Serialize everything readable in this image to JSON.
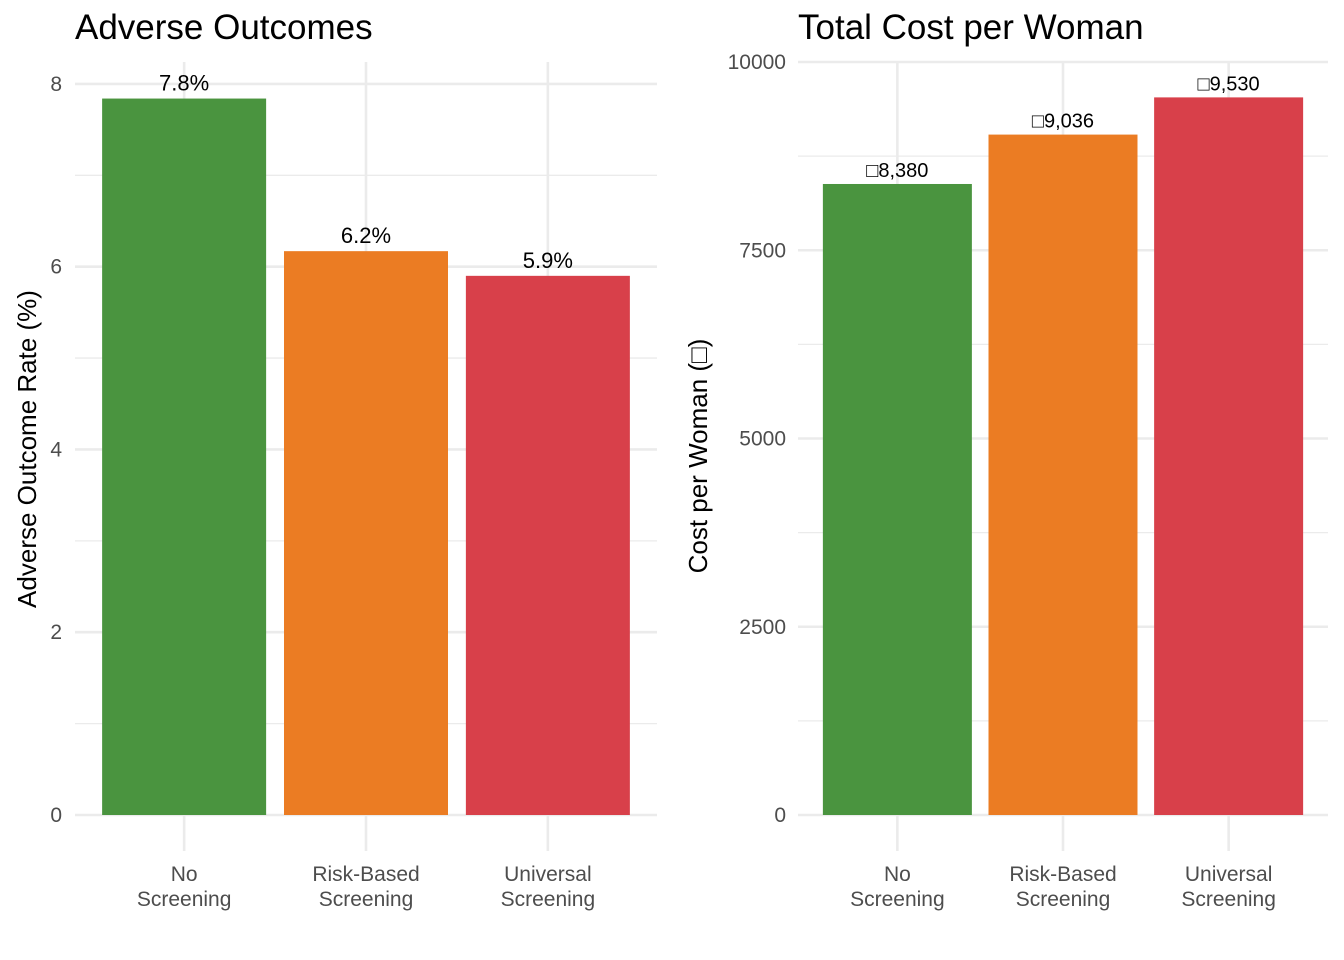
{
  "chart_data": [
    {
      "type": "bar",
      "title": "Adverse Outcomes",
      "xlabel": "",
      "ylabel": "Adverse Outcome Rate (%)",
      "categories": [
        "No Screening",
        "Risk-Based Screening",
        "Universal Screening"
      ],
      "category_lines": [
        [
          "No",
          "Screening"
        ],
        [
          "Risk-Based",
          "Screening"
        ],
        [
          "Universal",
          "Screening"
        ]
      ],
      "values": [
        7.84,
        6.17,
        5.9
      ],
      "data_labels": [
        "7.8%",
        "6.2%",
        "5.9%"
      ],
      "colors": [
        "#4a943f",
        "#eb7c23",
        "#d8404a"
      ],
      "yticks": [
        0,
        2,
        4,
        6,
        8
      ],
      "ytick_labels": [
        "0",
        "2",
        "4",
        "6",
        "8"
      ],
      "ylim": [
        0,
        8.24
      ],
      "grid": true,
      "legend": "none"
    },
    {
      "type": "bar",
      "title": "Total Cost per Woman",
      "xlabel": "",
      "ylabel": "Cost per Woman (□)",
      "categories": [
        "No Screening",
        "Risk-Based Screening",
        "Universal Screening"
      ],
      "category_lines": [
        [
          "No",
          "Screening"
        ],
        [
          "Risk-Based",
          "Screening"
        ],
        [
          "Universal",
          "Screening"
        ]
      ],
      "values": [
        8380,
        9036,
        9530
      ],
      "data_labels": [
        "□8,380",
        "□9,036",
        "□9,530"
      ],
      "colors": [
        "#4a943f",
        "#eb7c23",
        "#d8404a"
      ],
      "yticks": [
        0,
        2500,
        5000,
        7500,
        10000
      ],
      "ytick_labels": [
        "0",
        "2500",
        "5000",
        "7500",
        "10000"
      ],
      "ylim": [
        0,
        10000
      ],
      "grid": true,
      "legend": "none"
    }
  ]
}
